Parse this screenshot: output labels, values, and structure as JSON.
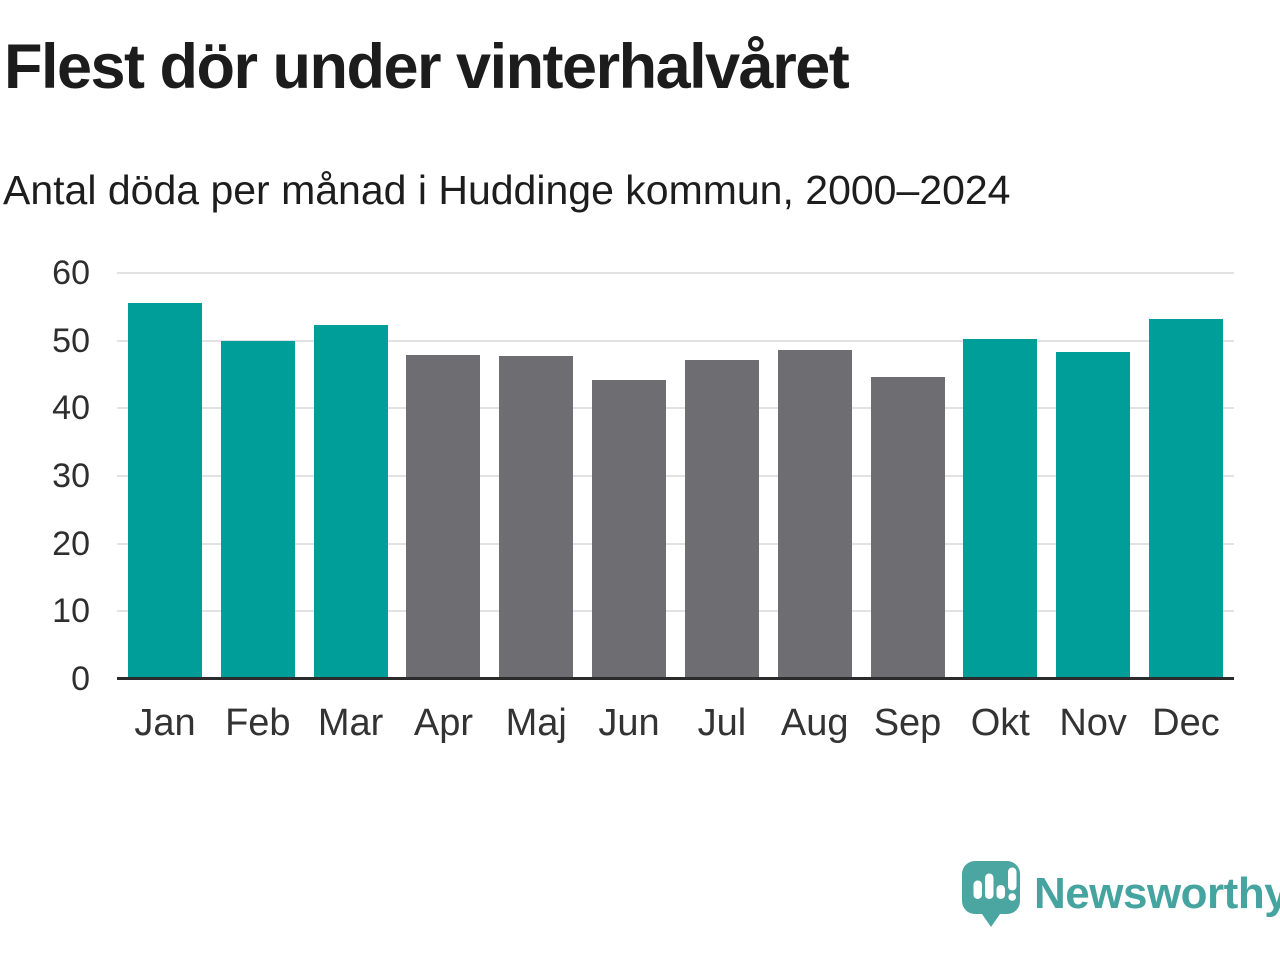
{
  "title": "Flest dör under vinterhalvåret",
  "subtitle": "Antal döda per månad i Huddinge kommun, 2000–2024",
  "brand": {
    "name": "Newsworthy",
    "icon": "speech-bubble-bar-chart-icon",
    "color": "#46a4a0"
  },
  "colors": {
    "background": "#ffffff",
    "winter_bar": "#009e98",
    "summer_bar": "#6e6d72",
    "gridline": "#e2e2e2",
    "axis_line": "#2b2b2b",
    "tick_label": "#333333",
    "title_text": "#1c1c1c"
  },
  "chart_data": {
    "type": "bar",
    "title": "Flest dör under vinterhalvåret",
    "subtitle": "Antal döda per månad i Huddinge kommun, 2000–2024",
    "categories": [
      "Jan",
      "Feb",
      "Mar",
      "Apr",
      "Maj",
      "Jun",
      "Jul",
      "Aug",
      "Sep",
      "Okt",
      "Nov",
      "Dec"
    ],
    "values": [
      55.6,
      49.9,
      52.3,
      47.9,
      47.8,
      44.2,
      47.2,
      48.6,
      44.7,
      50.2,
      48.4,
      53.2
    ],
    "bar_colors": [
      "winter",
      "winter",
      "winter",
      "summer",
      "summer",
      "summer",
      "summer",
      "summer",
      "summer",
      "winter",
      "winter",
      "winter"
    ],
    "series_colors": {
      "winter": "#009e98",
      "summer": "#6e6d72"
    },
    "xlabel": "",
    "ylabel": "",
    "ylim": [
      0,
      60
    ],
    "yticks": [
      0,
      10,
      20,
      30,
      40,
      50,
      60
    ],
    "grid": true,
    "legend": false
  }
}
